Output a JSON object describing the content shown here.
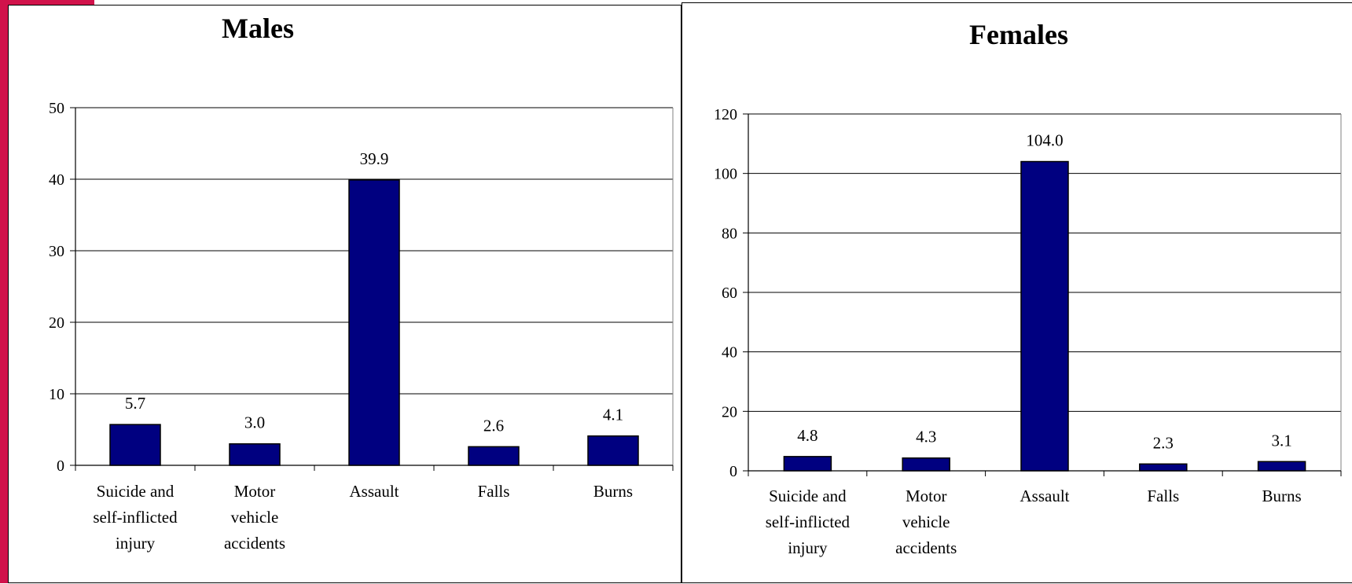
{
  "colors": {
    "bar": "#000080",
    "accent": "#d1124b",
    "grid": "#000000"
  },
  "chart_data": [
    {
      "type": "bar",
      "title": "Males",
      "categories": [
        [
          "Suicide and",
          "self-inflicted",
          "injury"
        ],
        [
          "Motor",
          "vehicle",
          "accidents"
        ],
        [
          "Assault"
        ],
        [
          "Falls"
        ],
        [
          "Burns"
        ]
      ],
      "values": [
        5.7,
        3.0,
        39.9,
        2.6,
        4.1
      ],
      "value_labels": [
        "5.7",
        "3.0",
        "39.9",
        "2.6",
        "4.1"
      ],
      "ylim": [
        0,
        50
      ],
      "yticks": [
        0,
        10,
        20,
        30,
        40,
        50
      ],
      "xlabel": "",
      "ylabel": "",
      "grid": true,
      "legend": "none"
    },
    {
      "type": "bar",
      "title": "Females",
      "categories": [
        [
          "Suicide and",
          "self-inflicted",
          "injury"
        ],
        [
          "Motor",
          "vehicle",
          "accidents"
        ],
        [
          "Assault"
        ],
        [
          "Falls"
        ],
        [
          "Burns"
        ]
      ],
      "values": [
        4.8,
        4.3,
        104.0,
        2.3,
        3.1
      ],
      "value_labels": [
        "4.8",
        "4.3",
        "104.0",
        "2.3",
        "3.1"
      ],
      "ylim": [
        0,
        120
      ],
      "yticks": [
        0,
        20,
        40,
        60,
        80,
        100,
        120
      ],
      "xlabel": "",
      "ylabel": "",
      "grid": true,
      "legend": "none"
    }
  ]
}
